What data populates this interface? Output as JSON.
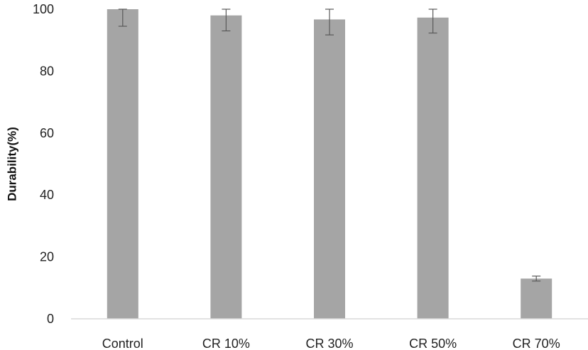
{
  "chart_data": {
    "type": "bar",
    "title": "",
    "xlabel": "",
    "ylabel": "Durability(%)",
    "categories": [
      "Control",
      "CR 10%",
      "CR 30%",
      "CR 50%",
      "CR 70%"
    ],
    "values": [
      100,
      98,
      96.7,
      97.3,
      13
    ],
    "error": [
      5.5,
      5,
      5,
      5,
      0.8
    ],
    "ylim": [
      0,
      100
    ],
    "yticks": [
      0,
      20,
      40,
      60,
      80,
      100
    ],
    "grid": false,
    "legend": "none",
    "colors": {
      "bar": "#a5a5a5",
      "axis": "#d9d9d9",
      "error_bar": "#595959"
    }
  }
}
